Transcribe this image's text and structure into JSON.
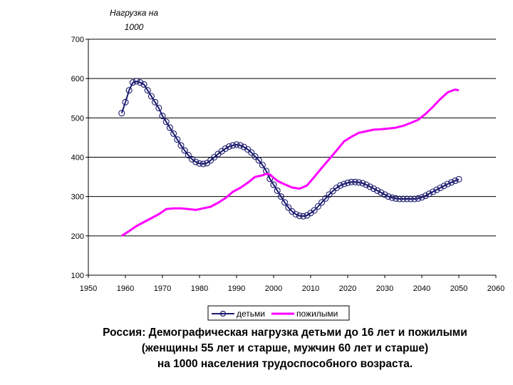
{
  "chart_data": {
    "type": "line",
    "ylabel_line1": "Нагрузка на",
    "ylabel_line2": "1000",
    "xlim": [
      1950,
      2060
    ],
    "ylim": [
      100,
      700
    ],
    "x_ticks": [
      1950,
      1960,
      1970,
      1980,
      1990,
      2000,
      2010,
      2020,
      2030,
      2040,
      2050,
      2060
    ],
    "y_ticks": [
      100,
      200,
      300,
      400,
      500,
      600,
      700
    ],
    "grid": true,
    "legend_position": "bottom",
    "series": [
      {
        "name": "детьми",
        "color": "#1a1a6e",
        "marker": "circle",
        "x": [
          1959,
          1960,
          1961,
          1962,
          1963,
          1964,
          1965,
          1966,
          1967,
          1968,
          1969,
          1970,
          1971,
          1972,
          1973,
          1974,
          1975,
          1976,
          1977,
          1978,
          1979,
          1980,
          1981,
          1982,
          1983,
          1984,
          1985,
          1986,
          1987,
          1988,
          1989,
          1990,
          1991,
          1992,
          1993,
          1994,
          1995,
          1996,
          1997,
          1998,
          1999,
          2000,
          2001,
          2002,
          2003,
          2004,
          2005,
          2006,
          2007,
          2008,
          2009,
          2010,
          2011,
          2012,
          2013,
          2014,
          2015,
          2016,
          2017,
          2018,
          2019,
          2020,
          2021,
          2022,
          2023,
          2024,
          2025,
          2026,
          2027,
          2028,
          2029,
          2030,
          2031,
          2032,
          2033,
          2034,
          2035,
          2036,
          2037,
          2038,
          2039,
          2040,
          2041,
          2042,
          2043,
          2044,
          2045,
          2046,
          2047,
          2048,
          2049,
          2050
        ],
        "y": [
          512,
          540,
          570,
          590,
          593,
          590,
          585,
          570,
          555,
          540,
          525,
          505,
          490,
          475,
          460,
          445,
          430,
          417,
          405,
          395,
          388,
          384,
          383,
          385,
          392,
          400,
          408,
          415,
          422,
          427,
          430,
          432,
          430,
          426,
          420,
          412,
          402,
          392,
          380,
          365,
          345,
          330,
          315,
          300,
          285,
          272,
          262,
          255,
          251,
          250,
          252,
          258,
          265,
          275,
          285,
          295,
          305,
          314,
          322,
          328,
          332,
          335,
          337,
          337,
          336,
          334,
          330,
          325,
          320,
          315,
          310,
          305,
          300,
          297,
          295,
          294,
          294,
          294,
          294,
          294,
          295,
          298,
          302,
          307,
          312,
          317,
          322,
          327,
          332,
          336,
          340,
          344
        ]
      },
      {
        "name": "пожилыми",
        "color": "#ff00ff",
        "x": [
          1959,
          1961,
          1963,
          1965,
          1967,
          1969,
          1971,
          1973,
          1975,
          1977,
          1979,
          1981,
          1983,
          1985,
          1987,
          1989,
          1991,
          1993,
          1995,
          1997,
          1998,
          1999,
          2001,
          2003,
          2005,
          2007,
          2009,
          2011,
          2013,
          2015,
          2017,
          2019,
          2021,
          2023,
          2025,
          2027,
          2029,
          2031,
          2033,
          2035,
          2037,
          2039,
          2041,
          2043,
          2045,
          2047,
          2049,
          2050
        ],
        "y": [
          200,
          212,
          225,
          235,
          245,
          255,
          268,
          270,
          270,
          268,
          266,
          270,
          274,
          284,
          296,
          312,
          322,
          335,
          350,
          354,
          358,
          356,
          340,
          331,
          323,
          320,
          328,
          350,
          373,
          395,
          417,
          440,
          452,
          462,
          466,
          470,
          471,
          473,
          475,
          480,
          487,
          495,
          510,
          528,
          548,
          565,
          572,
          570
        ]
      }
    ],
    "caption": [
      "Россия: Демографическая нагрузка детьми до 16 лет и пожилыми",
      "(женщины 55 лет и старше, мужчин 60 лет и старше)",
      "на 1000 населения трудоспособного возраста."
    ]
  }
}
